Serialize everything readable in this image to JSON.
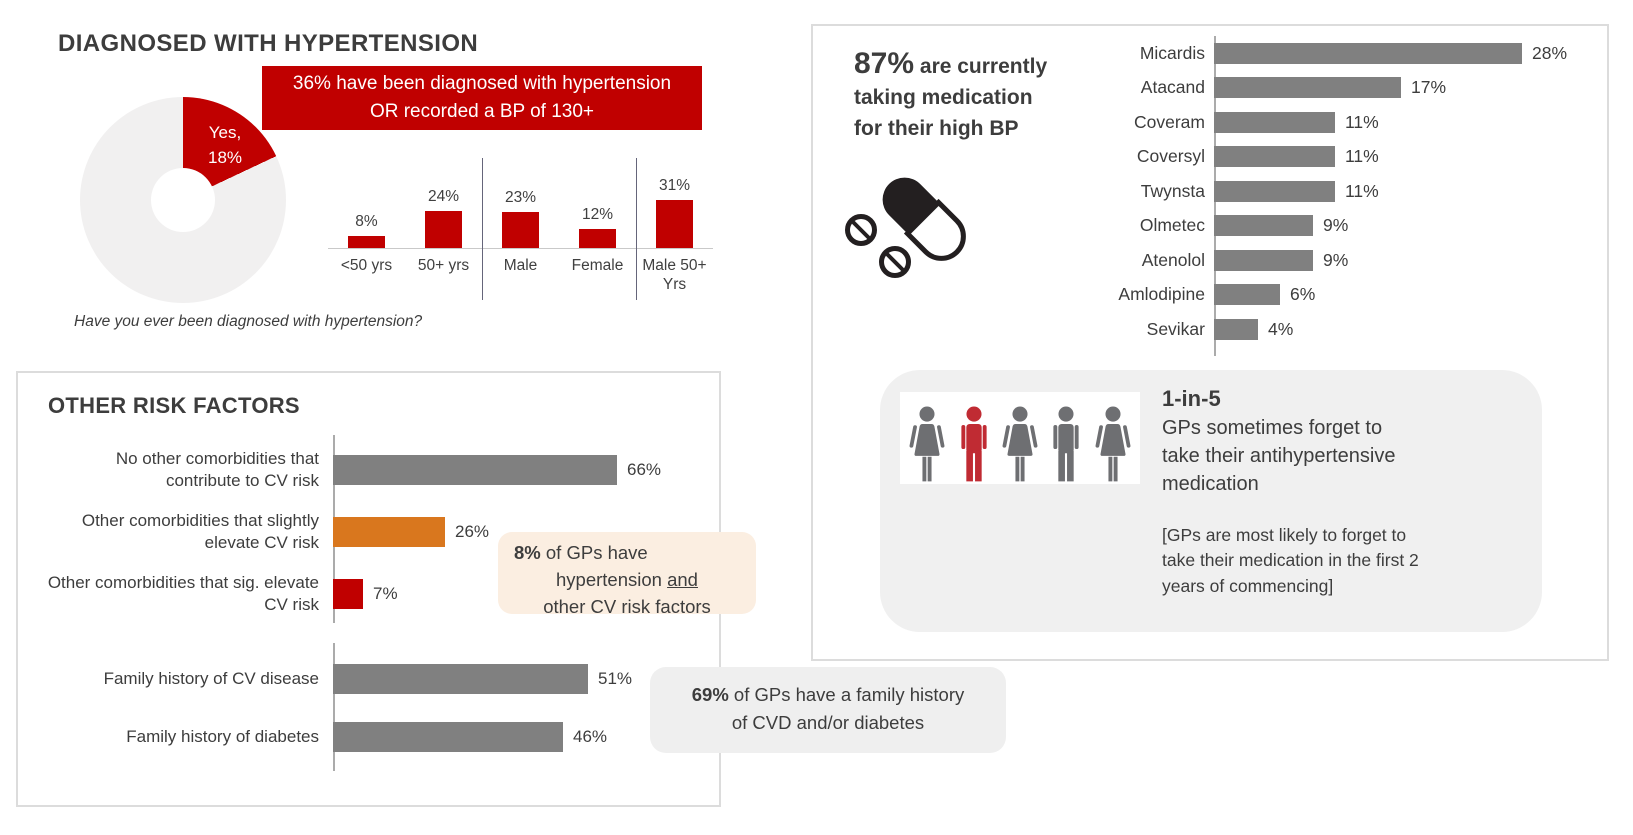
{
  "colors": {
    "red": "#C00000",
    "orange": "#D9771E",
    "gray_bar": "#808080",
    "donut_rest": "#F1F0F0",
    "dark_text": "#3D3D3D",
    "peach_callout_bg": "#FBEEE1",
    "gray_callout_bg": "#EFEFEF",
    "person_gray": "#6E6F72",
    "person_red": "#C02B33",
    "icon_dark": "#231F20"
  },
  "hypertension_section": {
    "title": "DIAGNOSED WITH HYPERTENSION",
    "banner": {
      "line1": "36% have been diagnosed with hypertension",
      "line2": "OR recorded a BP of 130+"
    },
    "donut_label": {
      "line1": "Yes,",
      "line2": "18%"
    },
    "caption": "Have you ever been diagnosed with hypertension?"
  },
  "risk_panel": {
    "title": "OTHER RISK FACTORS",
    "callout": {
      "stat": "8%",
      "line1_rest": "of GPs have",
      "line2_pre": "hypertension",
      "line2_underlined": "and",
      "line3": "other CV risk factors"
    }
  },
  "family_callout": {
    "stat": "69%",
    "line1_rest": "of GPs have a family history",
    "line2": "of CVD and/or diabetes"
  },
  "medication_panel": {
    "stat": "87%",
    "stat_line1_rest": "are currently",
    "stat_line2": "taking medication",
    "stat_line3": "for their high BP",
    "adherence": {
      "title": "1-in-5",
      "body": "GPs sometimes forget to take their antihypertensive medication",
      "note": "[GPs are most likely to forget to take their medication in the first 2 years of commencing]",
      "people": [
        "female",
        "male",
        "female",
        "male",
        "female"
      ],
      "highlight_index": 1,
      "person_color": "#6E6F72",
      "highlight_color": "#C02B33"
    }
  },
  "chart_data": [
    {
      "id": "diagnosis_donut",
      "type": "pie",
      "title": "Diagnosed with hypertension",
      "slices": [
        {
          "label": "Yes, 18%",
          "value": 18,
          "color": "#C00000"
        },
        {
          "label": "",
          "value": 82,
          "color": "#F1F0F0"
        }
      ]
    },
    {
      "id": "diagnosis_by_group",
      "type": "bar",
      "orientation": "vertical",
      "unit": "%",
      "categories": [
        "<50 yrs",
        "50+ yrs",
        "Male",
        "Female",
        "Male 50+ Yrs"
      ],
      "values": [
        8,
        24,
        23,
        12,
        31
      ],
      "bar_color": "#C00000",
      "dividers_after_index": [
        1,
        3
      ]
    },
    {
      "id": "other_risk_factors",
      "type": "bar",
      "orientation": "horizontal",
      "unit": "%",
      "categories": [
        "No other comorbidities that contribute to CV risk",
        "Other comorbidities that slightly elevate CV risk",
        "Other comorbidities that sig. elevate CV risk"
      ],
      "values": [
        66,
        26,
        7
      ],
      "colors": [
        "#808080",
        "#D9771E",
        "#C00000"
      ]
    },
    {
      "id": "family_history",
      "type": "bar",
      "orientation": "horizontal",
      "unit": "%",
      "categories": [
        "Family history of CV disease",
        "Family history of diabetes"
      ],
      "values": [
        51,
        46
      ],
      "colors": [
        "#808080",
        "#808080"
      ]
    },
    {
      "id": "current_medications",
      "type": "bar",
      "orientation": "horizontal",
      "unit": "%",
      "categories": [
        "Micardis",
        "Atacand",
        "Coveram",
        "Coversyl",
        "Twynsta",
        "Olmetec",
        "Atenolol",
        "Amlodipine",
        "Sevikar"
      ],
      "values": [
        28,
        17,
        11,
        11,
        11,
        9,
        9,
        6,
        4
      ],
      "bar_color": "#808080"
    }
  ]
}
